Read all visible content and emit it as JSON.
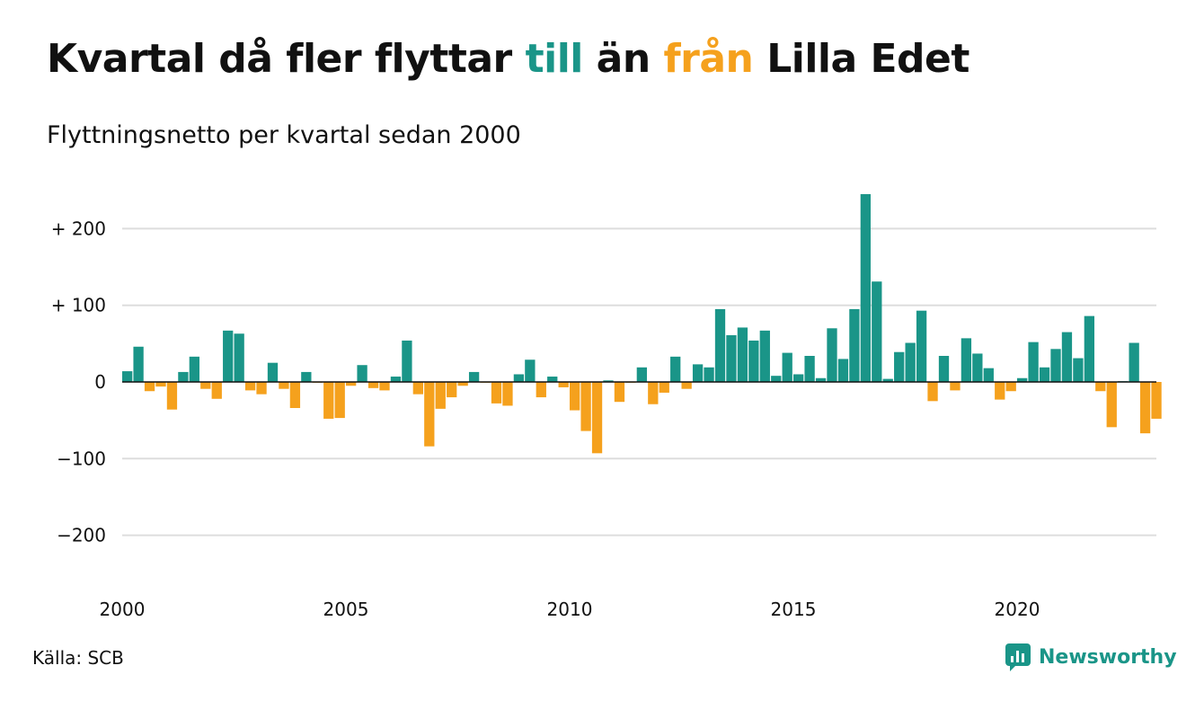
{
  "header": {
    "title_part1": "Kvartal då fler flyttar ",
    "title_till": "till",
    "title_part2": " än ",
    "title_fran": "från",
    "title_part3": " Lilla Edet",
    "subtitle": "Flyttningsnetto per kvartal sedan 2000"
  },
  "footer": {
    "source": "Källa: SCB",
    "brand": "Newsworthy",
    "brand_icon": "newsworthy-logo-icon"
  },
  "colors": {
    "positive": "#1a9588",
    "negative": "#f5a11d",
    "grid": "#dddddd",
    "zero_line": "#111111"
  },
  "chart_data": {
    "type": "bar",
    "title": "Kvartal då fler flyttar till än från Lilla Edet",
    "subtitle": "Flyttningsnetto per kvartal sedan 2000",
    "xlabel": "",
    "ylabel": "",
    "ylim": [
      -270,
      250
    ],
    "grid": true,
    "y_ticks": [
      {
        "value": 200,
        "label": "+ 200"
      },
      {
        "value": 100,
        "label": "+ 100"
      },
      {
        "value": 0,
        "label": "0"
      },
      {
        "value": -100,
        "label": "−100"
      },
      {
        "value": -200,
        "label": "−200"
      }
    ],
    "x_ticks": [
      "2000",
      "2005",
      "2010",
      "2015",
      "2020"
    ],
    "start_year": 2000,
    "periods_per_year": 4,
    "values": [
      14,
      46,
      -12,
      -6,
      -36,
      13,
      33,
      -9,
      -22,
      67,
      63,
      -11,
      -16,
      25,
      -9,
      -34,
      13,
      -1,
      -48,
      -47,
      -5,
      22,
      -8,
      -11,
      7,
      54,
      -16,
      -84,
      -35,
      -20,
      -5,
      13,
      -1,
      -28,
      -31,
      10,
      29,
      -20,
      7,
      -7,
      -37,
      -64,
      -93,
      2,
      -26,
      -1,
      19,
      -29,
      -14,
      33,
      -9,
      23,
      19,
      95,
      61,
      71,
      54,
      67,
      8,
      38,
      10,
      34,
      5,
      70,
      30,
      95,
      245,
      131,
      4,
      39,
      51,
      93,
      -25,
      34,
      -11,
      57,
      37,
      18,
      -23,
      -12,
      5,
      52,
      19,
      43,
      65,
      31,
      86,
      -12,
      -59,
      1,
      51,
      -67,
      -48
    ]
  }
}
